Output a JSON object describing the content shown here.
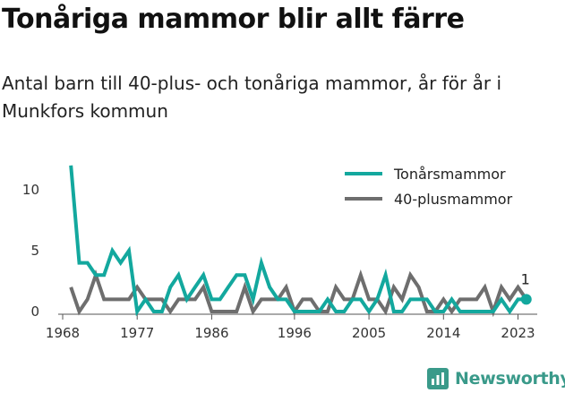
{
  "title": "Tonåriga mammor blir allt färre",
  "subtitle": "Antal barn till 40-plus- och tonåriga mammor, år för år i Munkfors kommun",
  "brand": {
    "name": "Newsworthy",
    "icon": "newsworthy-logo-icon"
  },
  "colors": {
    "teen": "#13a89e",
    "forty": "#6e6e6e"
  },
  "chart_data": {
    "type": "line",
    "x": [
      1969,
      1970,
      1971,
      1972,
      1973,
      1974,
      1975,
      1976,
      1977,
      1978,
      1979,
      1980,
      1981,
      1982,
      1983,
      1984,
      1985,
      1986,
      1987,
      1988,
      1989,
      1990,
      1991,
      1992,
      1993,
      1994,
      1995,
      1996,
      1997,
      1998,
      1999,
      2000,
      2001,
      2002,
      2003,
      2004,
      2005,
      2006,
      2007,
      2008,
      2009,
      2010,
      2011,
      2012,
      2013,
      2014,
      2015,
      2016,
      2017,
      2018,
      2019,
      2020,
      2021,
      2022,
      2023,
      2024
    ],
    "xticks": [
      "1968",
      "1977",
      "1986",
      "1996",
      "2005",
      "2014",
      "2023"
    ],
    "xtick_values": [
      1968,
      1977,
      1986,
      1996,
      2005,
      2014,
      2023
    ],
    "yticks": [
      "0",
      "5",
      "10"
    ],
    "ytick_values": [
      0,
      5,
      10
    ],
    "xlim": [
      1968,
      2025
    ],
    "ylim": [
      0,
      12.5
    ],
    "legend_position": "top-right",
    "end_label": "1",
    "series": [
      {
        "name": "Tonårsmammor",
        "color": "#13a89e",
        "values": [
          12,
          4,
          4,
          3,
          3,
          5,
          4,
          5,
          0,
          1,
          0,
          0,
          2,
          3,
          1,
          2,
          3,
          1,
          1,
          2,
          3,
          3,
          1,
          4,
          2,
          1,
          1,
          0,
          0,
          0,
          0,
          1,
          0,
          0,
          1,
          1,
          0,
          1,
          3,
          0,
          0,
          1,
          1,
          1,
          0,
          0,
          1,
          0,
          0,
          0,
          0,
          0,
          1,
          0,
          1,
          1
        ]
      },
      {
        "name": "40-plusmammor",
        "color": "#6e6e6e",
        "values": [
          2,
          0,
          1,
          3,
          1,
          1,
          1,
          1,
          2,
          1,
          1,
          1,
          0,
          1,
          1,
          1,
          2,
          0,
          0,
          0,
          0,
          2,
          0,
          1,
          1,
          1,
          2,
          0,
          1,
          1,
          0,
          0,
          2,
          1,
          1,
          3,
          1,
          1,
          0,
          2,
          1,
          3,
          2,
          0,
          0,
          1,
          0,
          1,
          1,
          1,
          2,
          0,
          2,
          1,
          2,
          1
        ]
      }
    ]
  }
}
